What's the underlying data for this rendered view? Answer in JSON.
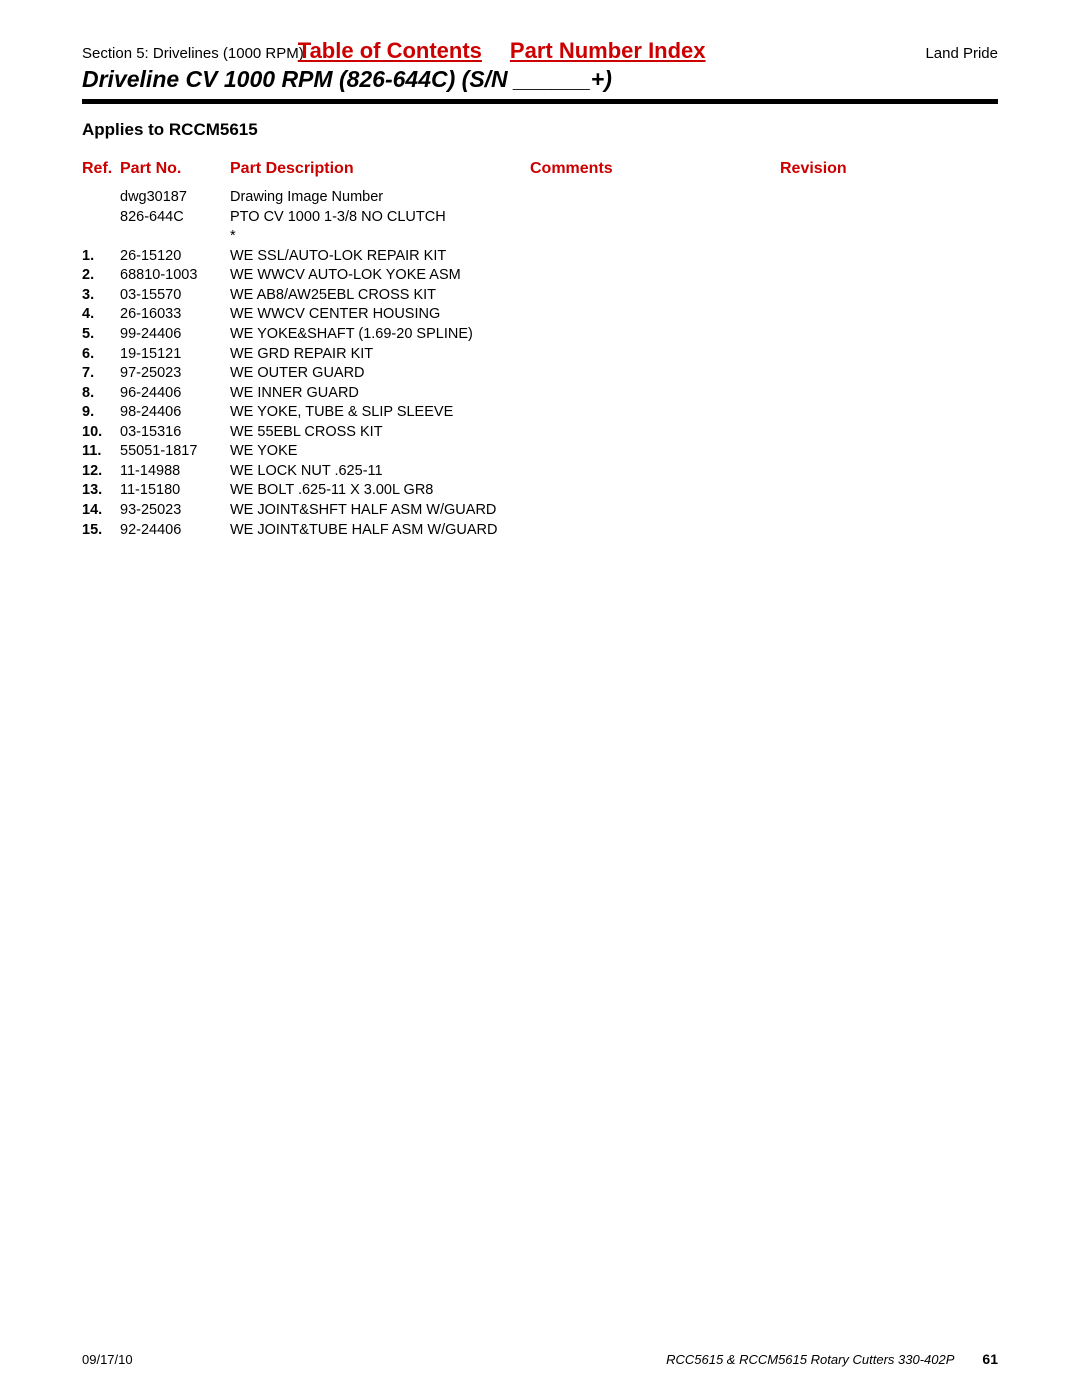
{
  "header": {
    "section_text": "Section 5: Drivelines (1000 RPM)",
    "toc_label": "Table of Contents",
    "pni_label": "Part Number Index",
    "land_pride": "Land Pride"
  },
  "title": "Driveline CV 1000 RPM (826-644C) (S/N ______+)",
  "applies_to": "Applies to RCCM5615",
  "columns": {
    "ref": "Ref.",
    "part_no": "Part No.",
    "description": "Part Description",
    "comments": "Comments",
    "revision": "Revision"
  },
  "pre_rows": [
    {
      "part": "dwg30187",
      "desc": "Drawing Image Number"
    },
    {
      "part": "826-644C",
      "desc": "PTO CV 1000 1-3/8 NO CLUTCH"
    }
  ],
  "asterisk": "*",
  "rows": [
    {
      "ref": "1.",
      "part": "26-15120",
      "desc": "WE SSL/AUTO-LOK REPAIR KIT"
    },
    {
      "ref": "2.",
      "part": "68810-1003",
      "desc": "WE WWCV AUTO-LOK YOKE ASM"
    },
    {
      "ref": "3.",
      "part": "03-15570",
      "desc": "WE AB8/AW25EBL CROSS KIT"
    },
    {
      "ref": "4.",
      "part": "26-16033",
      "desc": "WE WWCV CENTER HOUSING"
    },
    {
      "ref": "5.",
      "part": "99-24406",
      "desc": "WE YOKE&SHAFT (1.69-20 SPLINE)"
    },
    {
      "ref": "6.",
      "part": "19-15121",
      "desc": "WE GRD REPAIR KIT"
    },
    {
      "ref": "7.",
      "part": "97-25023",
      "desc": "WE OUTER GUARD"
    },
    {
      "ref": "8.",
      "part": "96-24406",
      "desc": "WE INNER GUARD"
    },
    {
      "ref": "9.",
      "part": "98-24406",
      "desc": "WE YOKE, TUBE & SLIP SLEEVE"
    },
    {
      "ref": "10.",
      "part": "03-15316",
      "desc": "WE 55EBL CROSS KIT"
    },
    {
      "ref": "11.",
      "part": "55051-1817",
      "desc": "WE YOKE"
    },
    {
      "ref": "12.",
      "part": "11-14988",
      "desc": "WE LOCK NUT .625-11"
    },
    {
      "ref": "13.",
      "part": "11-15180",
      "desc": "WE BOLT .625-11 X 3.00L GR8"
    },
    {
      "ref": "14.",
      "part": "93-25023",
      "desc": "WE JOINT&SHFT HALF ASM W/GUARD"
    },
    {
      "ref": "15.",
      "part": "92-24406",
      "desc": "WE JOINT&TUBE HALF ASM W/GUARD"
    }
  ],
  "footer": {
    "date": "09/17/10",
    "doc": "RCC5615 & RCCM5615 Rotary Cutters 330-402P",
    "page": "61"
  },
  "style": {
    "link_color": "#cc0000",
    "text_color": "#000000",
    "background_color": "#ffffff"
  }
}
